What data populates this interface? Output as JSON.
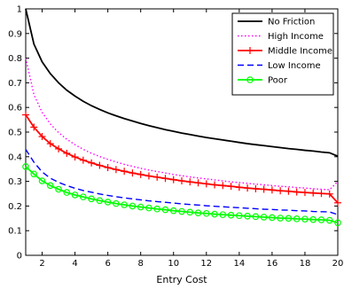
{
  "chart_data": {
    "type": "line",
    "title": "",
    "xlabel": "Entry Cost",
    "ylabel": "",
    "xlim": [
      1,
      20
    ],
    "ylim": [
      0,
      1
    ],
    "xticks": [
      2,
      4,
      6,
      8,
      10,
      12,
      14,
      16,
      18,
      20
    ],
    "yticks": [
      0,
      0.1,
      0.2,
      0.3,
      0.4,
      0.5,
      0.6,
      0.7,
      0.8,
      0.9,
      1
    ],
    "xtick_labels": [
      "2",
      "4",
      "6",
      "8",
      "10",
      "12",
      "14",
      "16",
      "18",
      "20"
    ],
    "ytick_labels": [
      "0",
      "0.1",
      "0.2",
      "0.3",
      "0.4",
      "0.5",
      "0.6",
      "0.7",
      "0.8",
      "0.9",
      "1"
    ],
    "grid": false,
    "legend_position": "top-right",
    "x": [
      1,
      1.5,
      2,
      2.5,
      3,
      3.5,
      4,
      4.5,
      5,
      5.5,
      6,
      6.5,
      7,
      7.5,
      8,
      8.5,
      9,
      9.5,
      10,
      10.5,
      11,
      11.5,
      12,
      12.5,
      13,
      13.5,
      14,
      14.5,
      15,
      15.5,
      16,
      16.5,
      17,
      17.5,
      18,
      18.5,
      19,
      19.5,
      20
    ],
    "series": [
      {
        "name": "No Friction",
        "color": "#000000",
        "style": "solid",
        "marker": "none",
        "values": [
          1.0,
          0.857,
          0.785,
          0.737,
          0.7,
          0.67,
          0.646,
          0.625,
          0.607,
          0.592,
          0.578,
          0.566,
          0.555,
          0.545,
          0.535,
          0.526,
          0.518,
          0.51,
          0.503,
          0.496,
          0.49,
          0.484,
          0.478,
          0.473,
          0.468,
          0.463,
          0.458,
          0.453,
          0.449,
          0.445,
          0.441,
          0.437,
          0.433,
          0.43,
          0.426,
          0.423,
          0.419,
          0.416,
          0.402
        ]
      },
      {
        "name": "High Income",
        "color": "#ff00ff",
        "style": "dotted",
        "marker": "none",
        "values": [
          0.8,
          0.652,
          0.58,
          0.533,
          0.498,
          0.471,
          0.449,
          0.43,
          0.414,
          0.401,
          0.389,
          0.379,
          0.369,
          0.361,
          0.353,
          0.346,
          0.34,
          0.334,
          0.328,
          0.323,
          0.318,
          0.314,
          0.31,
          0.306,
          0.302,
          0.298,
          0.295,
          0.292,
          0.289,
          0.286,
          0.283,
          0.28,
          0.278,
          0.275,
          0.273,
          0.27,
          0.268,
          0.266,
          0.3
        ]
      },
      {
        "name": "Middle Income",
        "color": "#ff0000",
        "style": "solid",
        "marker": "plus",
        "values": [
          0.57,
          0.52,
          0.482,
          0.453,
          0.432,
          0.414,
          0.399,
          0.386,
          0.375,
          0.365,
          0.356,
          0.348,
          0.341,
          0.334,
          0.328,
          0.322,
          0.317,
          0.312,
          0.307,
          0.302,
          0.298,
          0.294,
          0.29,
          0.286,
          0.283,
          0.28,
          0.276,
          0.273,
          0.27,
          0.268,
          0.265,
          0.262,
          0.26,
          0.257,
          0.255,
          0.253,
          0.251,
          0.249,
          0.213
        ]
      },
      {
        "name": "Low Income",
        "color": "#0000ff",
        "style": "dashed",
        "marker": "none",
        "values": [
          0.43,
          0.378,
          0.338,
          0.313,
          0.296,
          0.283,
          0.272,
          0.263,
          0.256,
          0.249,
          0.243,
          0.238,
          0.233,
          0.229,
          0.225,
          0.221,
          0.218,
          0.215,
          0.212,
          0.209,
          0.206,
          0.204,
          0.201,
          0.199,
          0.197,
          0.195,
          0.193,
          0.191,
          0.189,
          0.187,
          0.186,
          0.184,
          0.183,
          0.181,
          0.18,
          0.178,
          0.177,
          0.176,
          0.165
        ]
      },
      {
        "name": "Poor",
        "color": "#00ff00",
        "style": "solid",
        "marker": "circle",
        "values": [
          0.36,
          0.33,
          0.302,
          0.283,
          0.268,
          0.255,
          0.245,
          0.237,
          0.229,
          0.222,
          0.216,
          0.21,
          0.205,
          0.2,
          0.196,
          0.192,
          0.188,
          0.185,
          0.181,
          0.178,
          0.175,
          0.172,
          0.17,
          0.167,
          0.165,
          0.163,
          0.161,
          0.159,
          0.157,
          0.155,
          0.153,
          0.151,
          0.15,
          0.148,
          0.147,
          0.145,
          0.144,
          0.142,
          0.132
        ]
      }
    ]
  }
}
